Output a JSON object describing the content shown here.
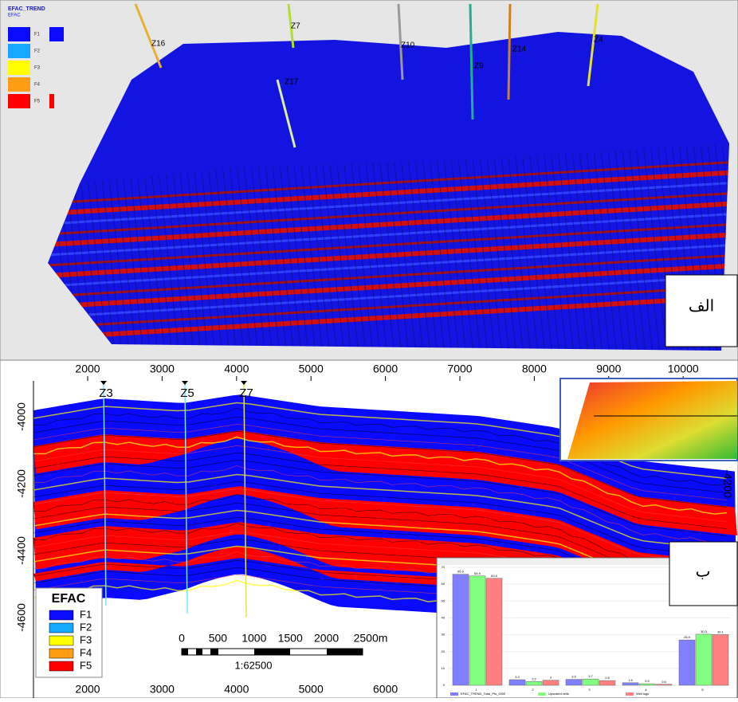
{
  "top_panel": {
    "title": "EFAC_TREND",
    "subtitle": "EFAC",
    "legend": [
      "F1",
      "F2",
      "F3",
      "F4",
      "F5"
    ],
    "wells": [
      "Z16",
      "Z7",
      "Z10",
      "Z9",
      "Z14",
      "Z4",
      "Z17"
    ],
    "label": "الف"
  },
  "bottom_panel": {
    "x_ticks_top": [
      "2000",
      "3000",
      "4000",
      "5000",
      "6000",
      "7000",
      "8000",
      "9000",
      "10000"
    ],
    "x_ticks_bottom": [
      "2000",
      "3000",
      "4000",
      "5000",
      "6000",
      "7000"
    ],
    "y_ticks_left": [
      "-4000",
      "-4200",
      "-4400",
      "-4600"
    ],
    "y_tick_right": "-4200",
    "wells": [
      "Z3",
      "Z5",
      "Z7"
    ],
    "legend_title": "EFAC",
    "legend": [
      "F1",
      "F2",
      "F3",
      "F4",
      "F5"
    ],
    "scale_labels": [
      "0",
      "500",
      "1000",
      "1500",
      "2000",
      "2500m"
    ],
    "scale": "1:62500",
    "label": "ب"
  },
  "histogram": {
    "x_labels": [
      "1",
      "2",
      "3",
      "4",
      "5"
    ],
    "y_ticks": [
      "0",
      "10",
      "20",
      "30",
      "40",
      "50",
      "60",
      "70"
    ],
    "series": [
      {
        "name": "EFAC_TREND_Total_Pts_0000",
        "values": [
          65.9,
          3.3,
          3.5,
          1.5,
          26.9
        ]
      },
      {
        "name": "Upscaled cells",
        "values": [
          64.9,
          2.2,
          3.7,
          0.9,
          30.3
        ]
      },
      {
        "name": "Well logs",
        "values": [
          63.5,
          3.0,
          2.8,
          0.6,
          30.1
        ]
      }
    ]
  }
}
